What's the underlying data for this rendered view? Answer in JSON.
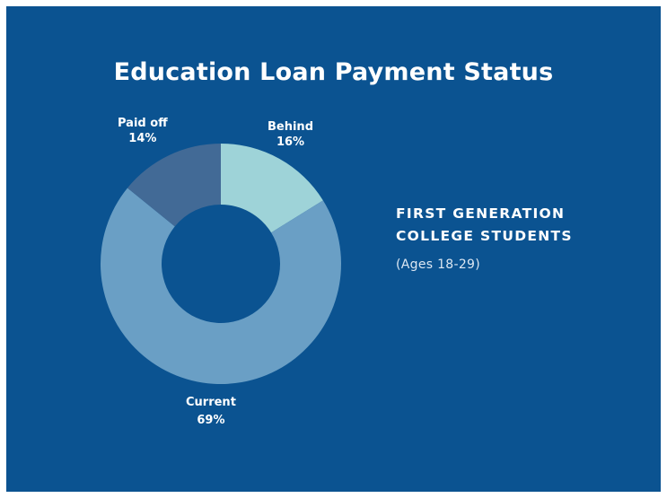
{
  "header": {
    "title": "Education Loan Payment Status"
  },
  "legend": {
    "line1": "FIRST GENERATION",
    "line2": "COLLEGE STUDENTS",
    "subtitle": "(Ages 18-29)"
  },
  "labels": {
    "behind_name": "Behind",
    "behind_pct": "16%",
    "current_name": "Current",
    "current_pct": "69%",
    "paidoff_name": "Paid off",
    "paidoff_pct": "14%"
  },
  "colors": {
    "background": "#0b5391",
    "behind": "#9ed3d8",
    "current": "#6a9fc5",
    "paid_off": "#426a96"
  },
  "chart_data": {
    "type": "pie",
    "title": "Education Loan Payment Status",
    "subtitle": "FIRST GENERATION COLLEGE STUDENTS (Ages 18-29)",
    "categories": [
      "Behind",
      "Current",
      "Paid off"
    ],
    "values": [
      16,
      69,
      14
    ],
    "unit": "%",
    "donut": true
  }
}
